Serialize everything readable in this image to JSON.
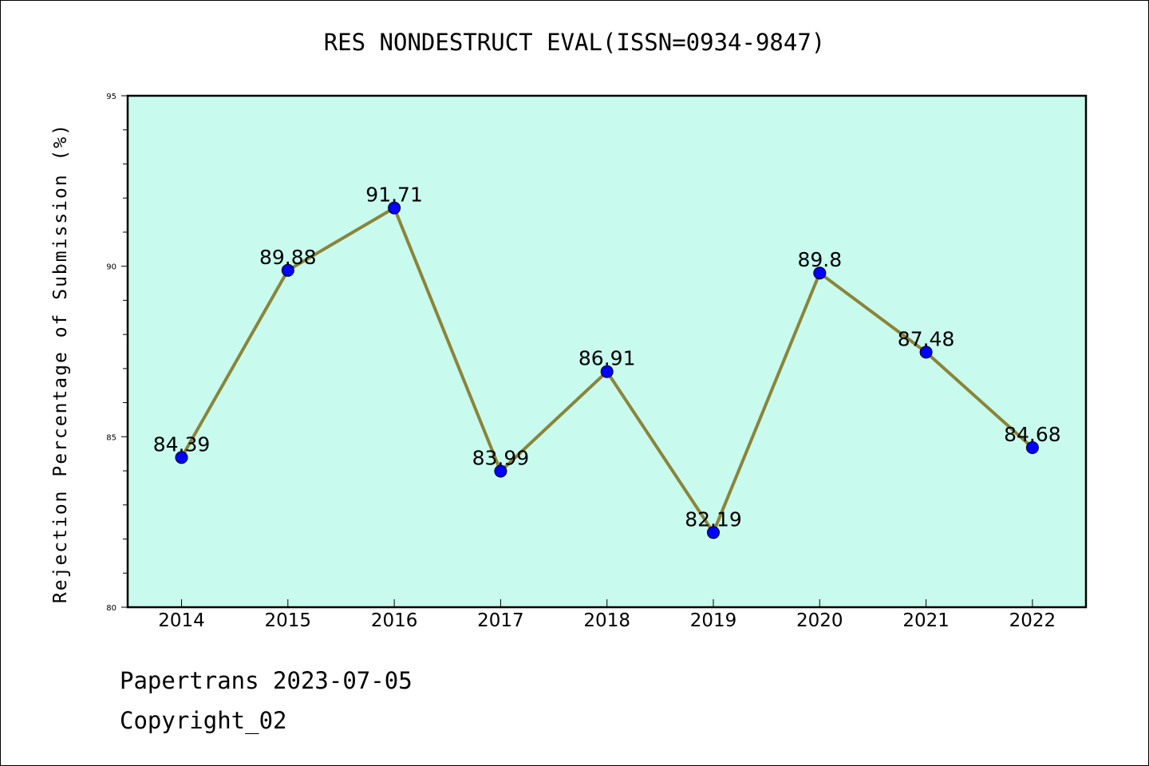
{
  "footer": {
    "line1": "Papertrans 2023-07-05",
    "line2": "Copyright_02"
  },
  "colors": {
    "plot_background": "#c8fbee",
    "line": "#8b8439",
    "marker": "#0000ff"
  },
  "chart_data": {
    "type": "line",
    "title": "RES NONDESTRUCT EVAL(ISSN=0934-9847)",
    "xlabel": "",
    "ylabel": "Rejection Percentage of Submission (%)",
    "categories": [
      "2014",
      "2015",
      "2016",
      "2017",
      "2018",
      "2019",
      "2020",
      "2021",
      "2022"
    ],
    "series": [
      {
        "values": [
          84.39,
          89.88,
          91.71,
          83.99,
          86.91,
          82.19,
          89.8,
          87.48,
          84.68
        ],
        "labels": [
          "84.39",
          "89.88",
          "91.71",
          "83.99",
          "86.91",
          "82.19",
          "89.8",
          "87.48",
          "84.68"
        ]
      }
    ],
    "ylim": [
      80,
      95
    ],
    "yticks": [
      "80",
      "85",
      "90",
      "95"
    ],
    "grid": false,
    "legend": "none"
  }
}
